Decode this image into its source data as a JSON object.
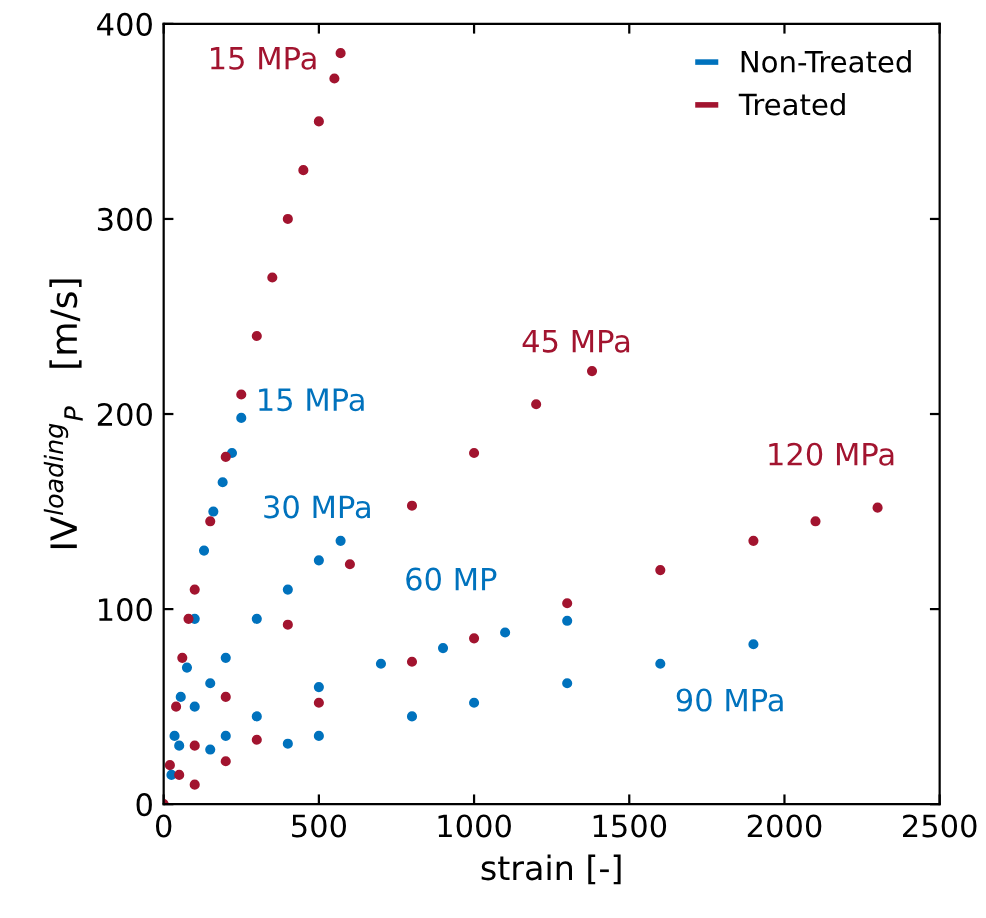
{
  "chart_data": {
    "type": "scatter",
    "xlabel": "strain [-]",
    "ylabel": "IV$^{loading}$$_{P}$   [m/s]",
    "xlim": [
      0,
      2500
    ],
    "ylim": [
      0,
      400
    ],
    "xticks": [
      0,
      500,
      1000,
      1500,
      2000,
      2500
    ],
    "yticks": [
      0,
      100,
      200,
      300,
      400
    ],
    "grid": false,
    "legend": "top right",
    "marker": "circle",
    "series": [
      {
        "name": "Non-Treated",
        "color": "#0072bd",
        "x": [
          35,
          55,
          75,
          100,
          130,
          160,
          190,
          220,
          250
        ],
        "values": [
          35,
          55,
          70,
          95,
          130,
          150,
          165,
          180,
          198
        ]
      },
      {
        "name": "Treated",
        "color": "#a2142f",
        "x": [
          20,
          40,
          60,
          80,
          100,
          150,
          200,
          250,
          300,
          350,
          400,
          450,
          500,
          550,
          570
        ],
        "values": [
          20,
          50,
          75,
          95,
          110,
          145,
          178,
          210,
          240,
          270,
          300,
          325,
          350,
          372,
          385
        ]
      },
      {
        "color": "#0072bd",
        "x": [
          25,
          50,
          100,
          150,
          200,
          300,
          400,
          500,
          570
        ],
        "values": [
          15,
          30,
          50,
          62,
          75,
          95,
          110,
          125,
          135
        ]
      },
      {
        "color": "#a2142f",
        "x": [
          50,
          100,
          200,
          400,
          600,
          800,
          1000,
          1200,
          1380
        ],
        "values": [
          15,
          30,
          55,
          92,
          123,
          153,
          180,
          205,
          222
        ]
      },
      {
        "color": "#0072bd",
        "x": [
          150,
          200,
          300,
          500,
          700,
          900,
          1100,
          1300
        ],
        "values": [
          28,
          35,
          45,
          60,
          72,
          80,
          88,
          94
        ]
      },
      {
        "color": "#a2142f",
        "x": [
          0,
          100,
          200,
          300,
          500,
          800,
          1000,
          1300,
          1600,
          1900,
          2100,
          2300
        ],
        "values": [
          0,
          10,
          22,
          33,
          52,
          73,
          85,
          103,
          120,
          135,
          145,
          152
        ]
      },
      {
        "color": "#0072bd",
        "x": [
          400,
          500,
          800,
          1000,
          1300,
          1600,
          1900
        ],
        "values": [
          31,
          35,
          45,
          52,
          62,
          72,
          82
        ]
      }
    ],
    "annotations": [
      "15 MPa",
      "15 MPa",
      "30 MPa",
      "45 MPa",
      "120 MPa",
      "60 MP",
      "90 MPa"
    ]
  }
}
